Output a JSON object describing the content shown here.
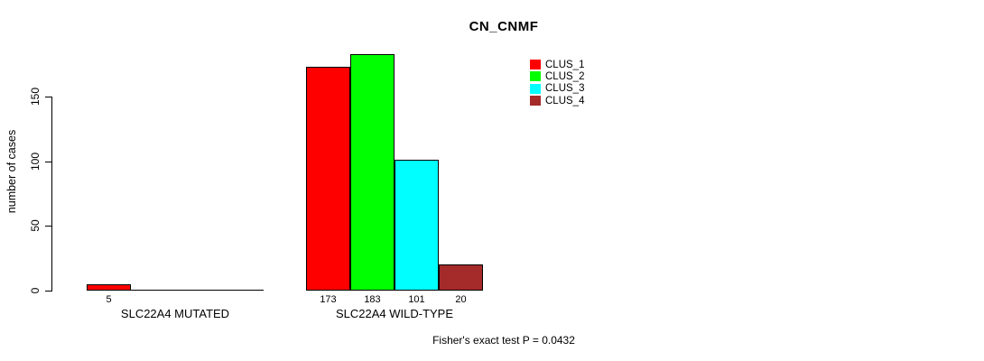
{
  "title": "CN_CNMF",
  "y_axis": {
    "label": "number of cases"
  },
  "groups": [
    {
      "label": "SLC22A4 MUTATED"
    },
    {
      "label": "SLC22A4 WILD-TYPE"
    }
  ],
  "legend": {
    "items": [
      {
        "label": "CLUS_1",
        "color": "#ff0000"
      },
      {
        "label": "CLUS_2",
        "color": "#00ff00"
      },
      {
        "label": "CLUS_3",
        "color": "#00ffff"
      },
      {
        "label": "CLUS_4",
        "color": "#a52a2a"
      }
    ]
  },
  "footer": "Fisher's exact test P = 0.0432",
  "chart_data": {
    "type": "bar",
    "title": "CN_CNMF",
    "categories": [
      "SLC22A4 MUTATED",
      "SLC22A4 WILD-TYPE"
    ],
    "series": [
      {
        "name": "CLUS_1",
        "color": "#ff0000",
        "values": [
          5,
          173
        ]
      },
      {
        "name": "CLUS_2",
        "color": "#00ff00",
        "values": [
          0,
          183
        ]
      },
      {
        "name": "CLUS_3",
        "color": "#00ffff",
        "values": [
          0,
          101
        ]
      },
      {
        "name": "CLUS_4",
        "color": "#a52a2a",
        "values": [
          0,
          20
        ]
      }
    ],
    "ylabel": "number of cases",
    "xlabel": "",
    "ylim": [
      0,
      150
    ],
    "yticks": [
      0,
      50,
      100,
      150
    ],
    "grid": false,
    "legend_position": "top-right",
    "bar_value_labels": true,
    "annotation": "Fisher's exact test P = 0.0432"
  }
}
